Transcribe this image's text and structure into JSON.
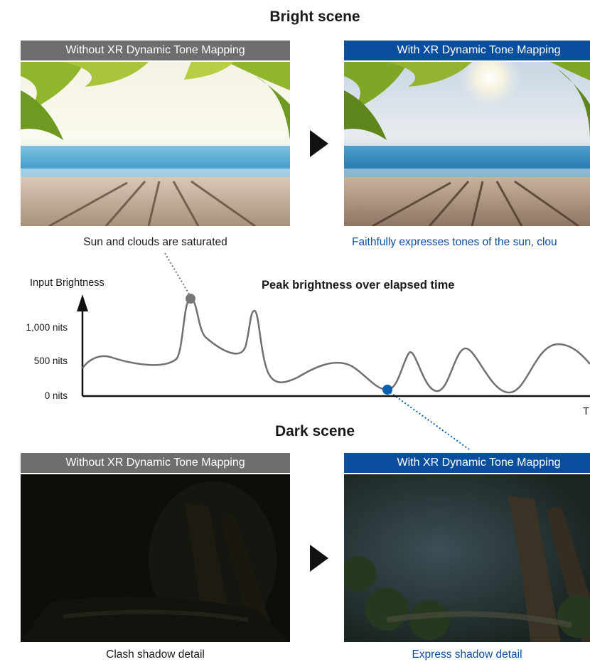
{
  "bright_scene": {
    "title": "Bright scene",
    "without_header": "Without XR Dynamic Tone Mapping",
    "with_header": "With XR Dynamic Tone Mapping",
    "without_caption": "Sun and clouds are saturated",
    "with_caption": "Faithfully expresses tones of  the sun, clou"
  },
  "chart": {
    "title": "Peak brightness over elapsed time",
    "y_axis_label": "Input Brightness",
    "x_axis_label": "T",
    "y_ticks": [
      "1,000 nits",
      "500 nits",
      "0 nits"
    ]
  },
  "dark_scene": {
    "title": "Dark scene",
    "without_header": "Without XR Dynamic Tone Mapping",
    "with_header": "With XR Dynamic Tone Mapping",
    "without_caption": "Clash shadow detail",
    "with_caption": "Express shadow detail"
  },
  "colors": {
    "without_header": "#6e6e6e",
    "with_header": "#0a4f9e",
    "bright_marker": "#777777",
    "dark_marker": "#0b5fb0",
    "curve": "#707070"
  }
}
